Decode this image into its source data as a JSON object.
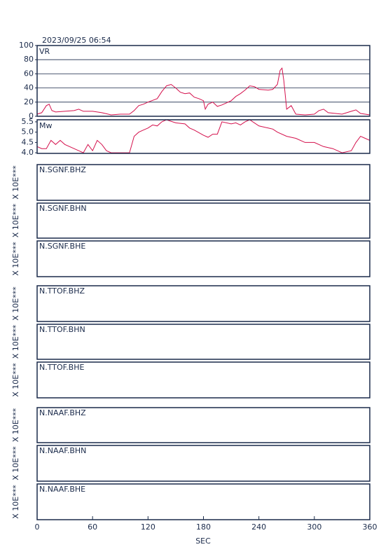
{
  "title": "2023/09/25 06:54",
  "chart_data": [
    {
      "type": "line",
      "label": "VR",
      "color": "#d4104c",
      "grid": true,
      "xlim": [
        0,
        360
      ],
      "ylim": [
        0,
        100
      ],
      "yticks": [
        0,
        20,
        40,
        60,
        80,
        100
      ],
      "x": [
        0,
        5,
        10,
        13,
        16,
        20,
        30,
        40,
        45,
        50,
        60,
        70,
        80,
        90,
        100,
        105,
        110,
        115,
        120,
        130,
        135,
        140,
        145,
        150,
        155,
        160,
        165,
        170,
        175,
        180,
        182,
        185,
        190,
        195,
        200,
        210,
        215,
        220,
        225,
        230,
        235,
        240,
        250,
        255,
        260,
        263,
        265,
        267,
        270,
        275,
        280,
        290,
        300,
        305,
        310,
        315,
        330,
        340,
        345,
        350,
        360
      ],
      "values": [
        3,
        5,
        15,
        17,
        8,
        6,
        7,
        8,
        10,
        7,
        7,
        5,
        2,
        3,
        3,
        8,
        15,
        17,
        20,
        25,
        35,
        43,
        45,
        40,
        34,
        32,
        33,
        27,
        25,
        22,
        10,
        17,
        20,
        14,
        16,
        22,
        28,
        32,
        37,
        43,
        42,
        38,
        37,
        38,
        45,
        65,
        68,
        50,
        10,
        15,
        3,
        2,
        3,
        8,
        10,
        5,
        3,
        7,
        9,
        4,
        2
      ]
    },
    {
      "type": "line",
      "label": "Mw",
      "color": "#d4104c",
      "grid": false,
      "xlim": [
        0,
        360
      ],
      "ylim": [
        3.97,
        5.6
      ],
      "yticks": [
        {
          "value": 4,
          "label": "4.0"
        },
        4.5,
        {
          "value": 5,
          "label": "5.0"
        },
        5.5
      ],
      "x": [
        0,
        5,
        10,
        15,
        20,
        25,
        30,
        40,
        45,
        50,
        55,
        60,
        65,
        70,
        75,
        80,
        85,
        90,
        95,
        100,
        105,
        110,
        115,
        120,
        125,
        130,
        135,
        140,
        150,
        160,
        165,
        170,
        180,
        185,
        190,
        195,
        200,
        210,
        215,
        220,
        225,
        230,
        240,
        250,
        255,
        260,
        270,
        280,
        290,
        300,
        310,
        320,
        330,
        340,
        345,
        350,
        355,
        360
      ],
      "values": [
        4.3,
        4.2,
        4.2,
        4.6,
        4.4,
        4.6,
        4.4,
        4.2,
        4.1,
        4.0,
        4.4,
        4.1,
        4.6,
        4.4,
        4.1,
        4.0,
        4.0,
        4.0,
        4.0,
        4.0,
        4.8,
        5.0,
        5.1,
        5.2,
        5.35,
        5.3,
        5.5,
        5.6,
        5.45,
        5.4,
        5.2,
        5.1,
        4.85,
        4.75,
        4.9,
        4.9,
        5.5,
        5.4,
        5.45,
        5.35,
        5.5,
        5.6,
        5.3,
        5.2,
        5.15,
        5.0,
        4.8,
        4.7,
        4.5,
        4.5,
        4.3,
        4.2,
        4.0,
        4.1,
        4.5,
        4.8,
        4.7,
        4.6
      ]
    }
  ],
  "traces": [
    {
      "label": "N.SGNF.BHZ",
      "ylabel": "X 10E***"
    },
    {
      "label": "N.SGNF.BHN",
      "ylabel": "X 10E***"
    },
    {
      "label": "N.SGNF.BHE",
      "ylabel": "X 10E***"
    },
    {
      "label": "N.TTOF.BHZ",
      "ylabel": "X 10E***"
    },
    {
      "label": "N.TTOF.BHN",
      "ylabel": "X 10E***"
    },
    {
      "label": "N.TTOF.BHE",
      "ylabel": "X 10E***"
    },
    {
      "label": "N.NAAF.BHZ",
      "ylabel": "X 10E***"
    },
    {
      "label": "N.NAAF.BHN",
      "ylabel": "X 10E***"
    },
    {
      "label": "N.NAAF.BHE",
      "ylabel": "X 10E***"
    }
  ],
  "x_axis": {
    "label": "SEC",
    "xlim": [
      0,
      360
    ],
    "xticks": [
      0,
      60,
      120,
      180,
      240,
      300,
      360
    ]
  }
}
